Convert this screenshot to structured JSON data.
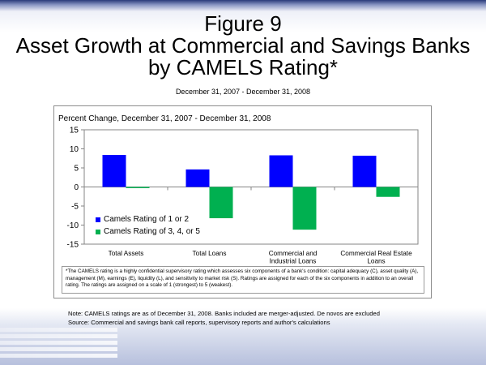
{
  "title_lines": [
    "Figure 9",
    "Asset Growth at Commercial and Savings Banks",
    "by CAMELS Rating*"
  ],
  "subtitle": "December 31, 2007 - December 31, 2008",
  "footnote": "*The CAMELS rating is a highly confidential supervisory rating which assesses six components of a bank's condition: capital adequacy (C), asset quality (A), management (M), earnings (E), liquidity (L), and sensitivity to market risk (S). Ratings are assigned for each of the six components in addition to an overall rating. The ratings are assigned on a scale of 1 (strongest) to 5 (weakest).",
  "note_line": "Note: CAMELS ratings are as of December 31, 2008. Banks included are merger-adjusted. De novos are excluded",
  "source_line": "Source: Commercial and savings bank call reports, supervisory reports and author's calculations",
  "chart_data": {
    "type": "bar",
    "title": "Percent Change, December 31, 2007 - December 31, 2008",
    "categories": [
      [
        "Total Assets"
      ],
      [
        "Total Loans"
      ],
      [
        "Commercial and",
        "Industrial Loans"
      ],
      [
        "Commercial Real Estate",
        "Loans"
      ]
    ],
    "series": [
      {
        "name": "Camels Rating of 1 or 2",
        "color": "#0000ff",
        "values": [
          8.4,
          4.6,
          8.3,
          8.2
        ]
      },
      {
        "name": "Camels Rating of 3, 4, or 5",
        "color": "#00b050",
        "values": [
          -0.3,
          -8.2,
          -11.2,
          -2.6
        ]
      }
    ],
    "ylim": [
      -15,
      15
    ],
    "yticks": [
      15,
      10,
      5,
      0,
      -5,
      -10,
      -15
    ],
    "grid": false,
    "legend_position": "lower-left"
  }
}
